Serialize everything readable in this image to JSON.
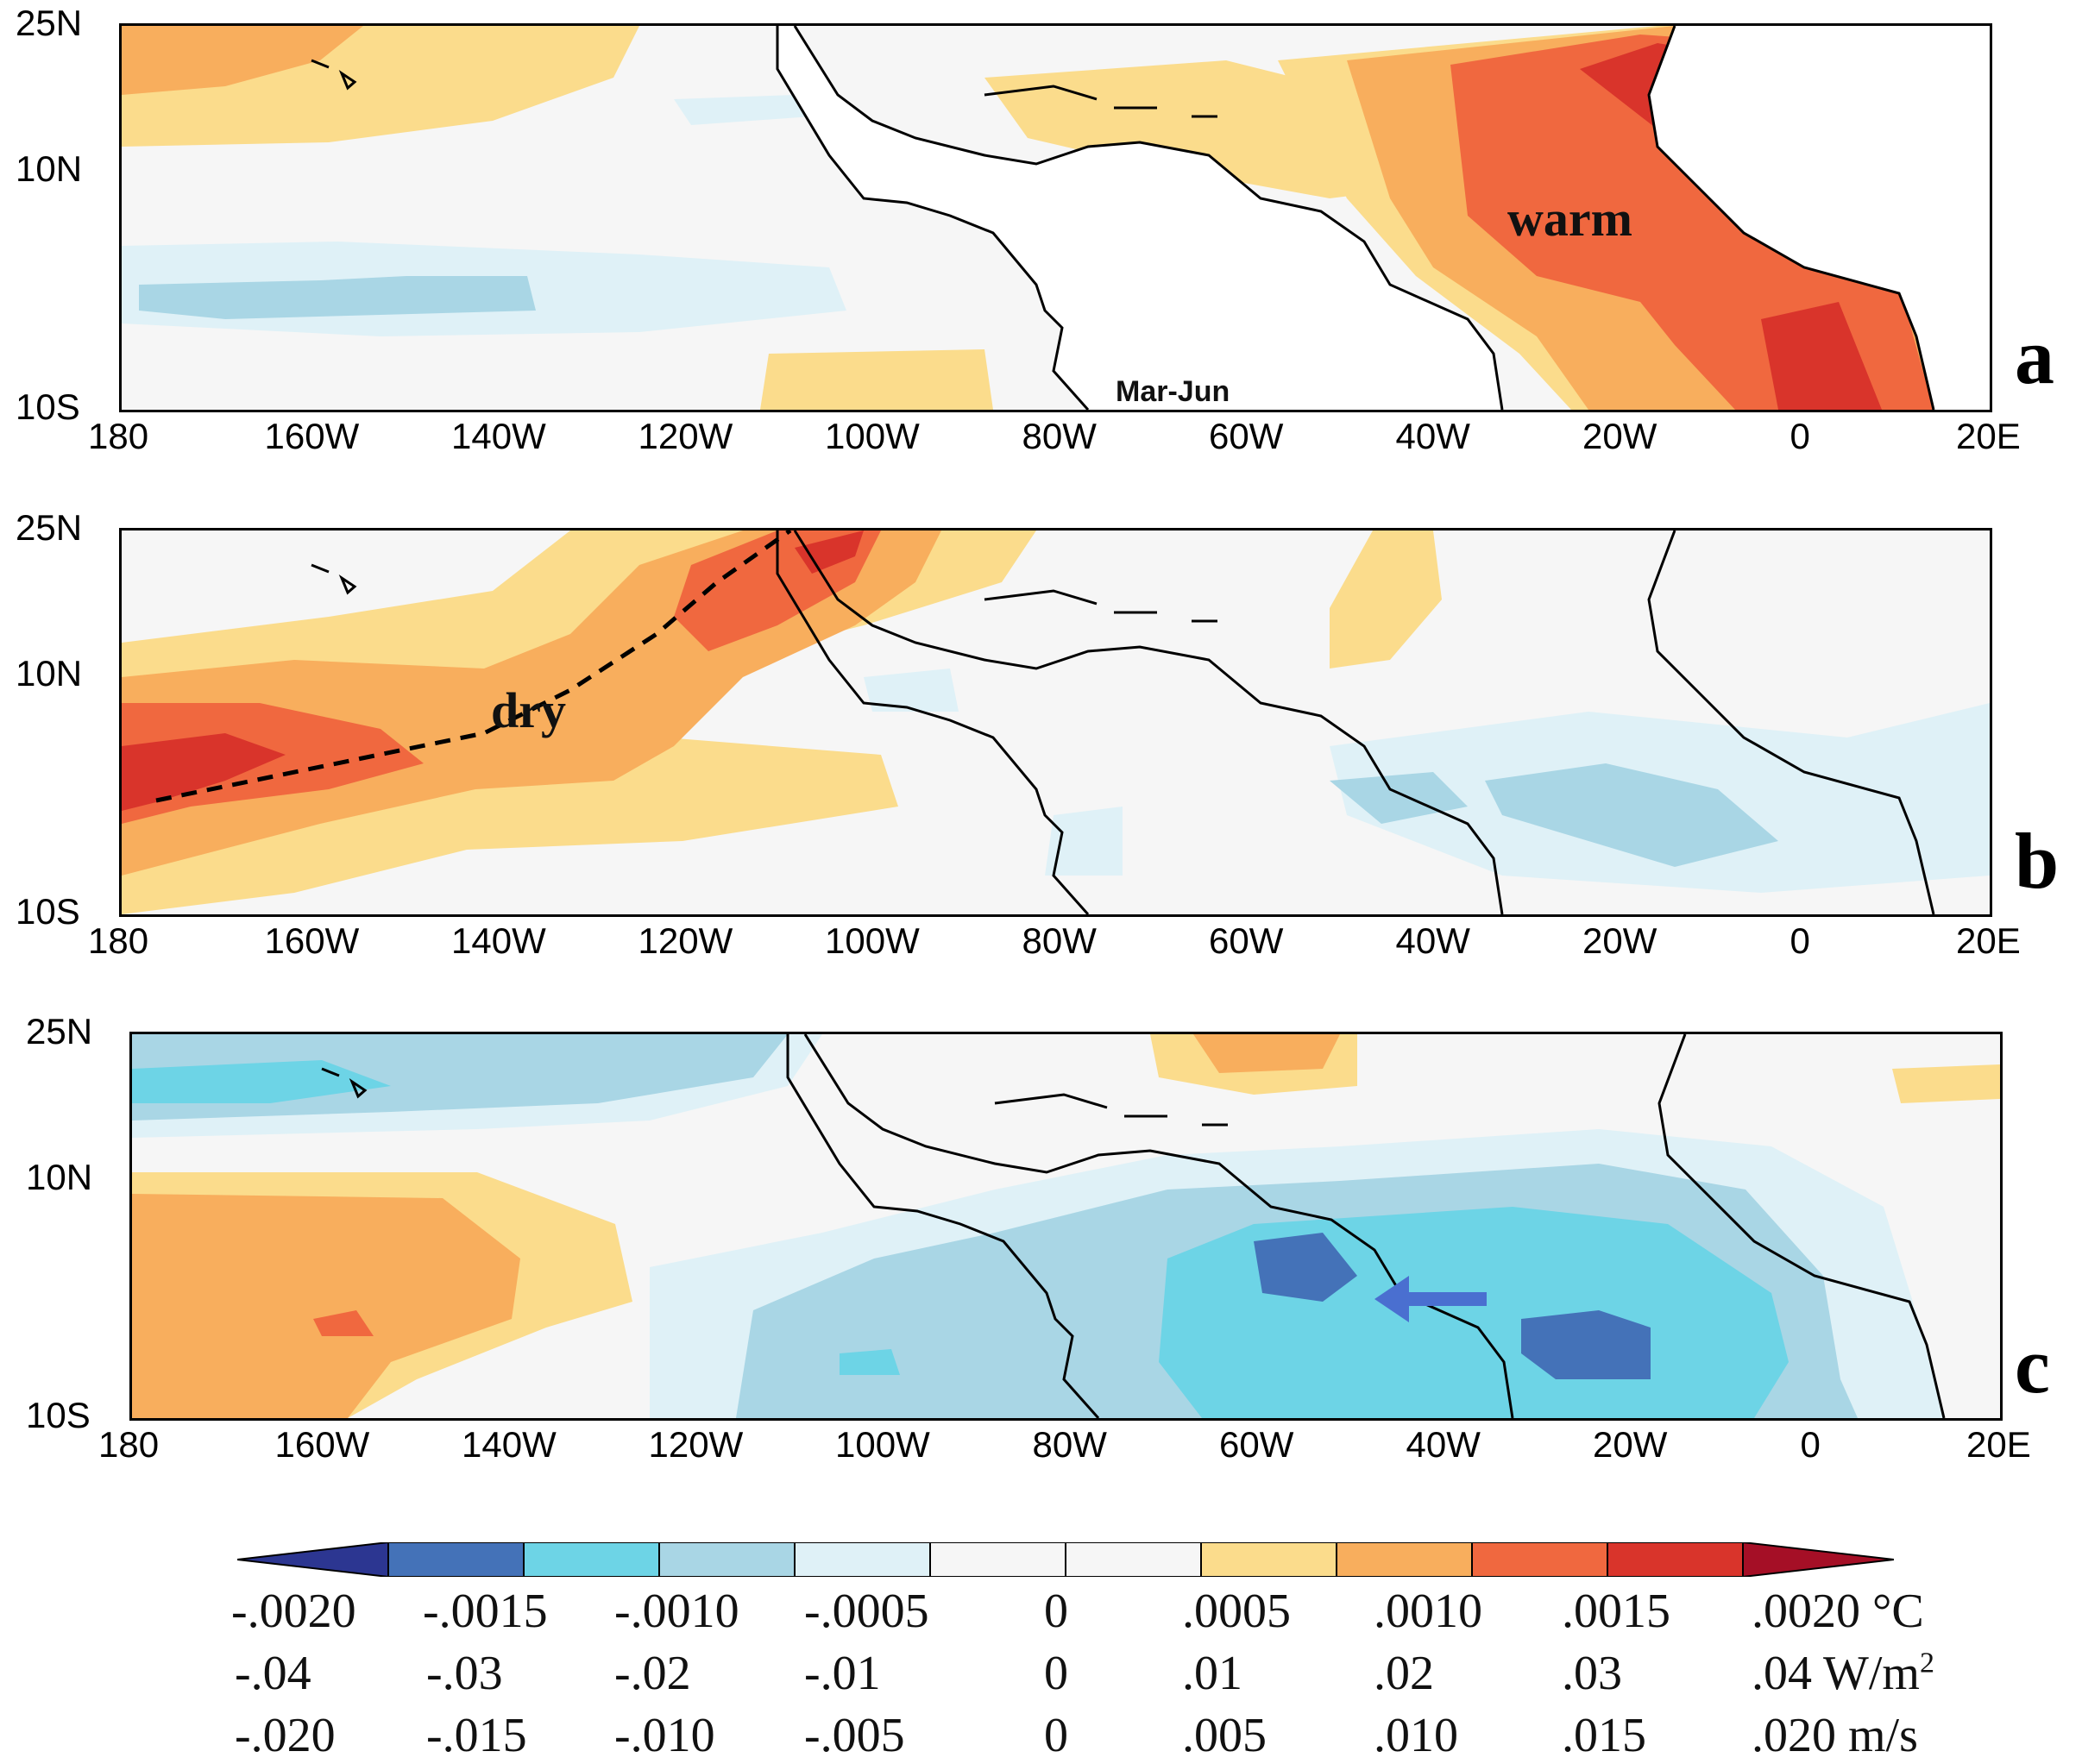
{
  "axes": {
    "y_labels": [
      "25N",
      "10N",
      "10S"
    ],
    "x_labels": [
      "180",
      "160W",
      "140W",
      "120W",
      "100W",
      "80W",
      "60W",
      "40W",
      "20W",
      "0",
      "20E"
    ]
  },
  "panels": [
    {
      "letter": "a",
      "annotation": "warm",
      "season": "Mar-Jun"
    },
    {
      "letter": "b",
      "annotation": "dry"
    },
    {
      "letter": "c"
    }
  ],
  "colors": {
    "c_m3": "#4472b8",
    "c_m2": "#6dd4e6",
    "c_m1": "#a9d6e5",
    "c_m0": "#dff1f7",
    "c_0": "#f6f6f6",
    "c_p0": "#fbdc8c",
    "c_p1": "#f8ae5d",
    "c_p2": "#f0683f",
    "c_p3": "#d9342b",
    "c_min": "#2c3691",
    "c_max": "#a50f26",
    "land": "#ffffff",
    "arrow": "#4a6fd0"
  },
  "colorbar": {
    "sst": {
      "labels": [
        "-.0020",
        "-.0015",
        "-.0010",
        "-.0005",
        "0",
        ".0005",
        ".0010",
        ".0015",
        ".0020"
      ],
      "unit": "°C"
    },
    "flux": {
      "labels": [
        "-.04",
        "-.03",
        "-.02",
        "-.01",
        "0",
        ".01",
        ".02",
        ".03",
        ".04"
      ],
      "unit": "W/m",
      "unit_sup": "2"
    },
    "wind": {
      "labels": [
        "-.020",
        "-.015",
        "-.010",
        "-.005",
        "0",
        ".005",
        ".010",
        ".015",
        ".020"
      ],
      "unit": "m/s"
    }
  }
}
